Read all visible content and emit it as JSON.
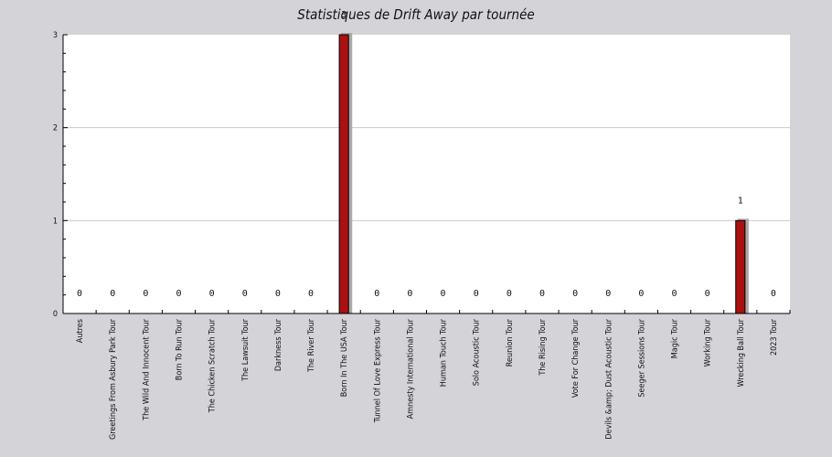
{
  "chart_data": {
    "type": "bar",
    "title": "Statistiques de Drift Away par tournée",
    "xlabel": "",
    "ylabel": "",
    "ylim": [
      0,
      3
    ],
    "yticks": [
      0,
      1,
      2,
      3
    ],
    "grid": true,
    "legend": "none",
    "categories": [
      "Autres",
      "Greetings From Asbury Park Tour",
      "The Wild And Innocent Tour",
      "Born To Run Tour",
      "The Chicken Scratch Tour",
      "The Lawsuit Tour",
      "Darkness Tour",
      "The River Tour",
      "Born In The USA Tour",
      "Tunnel Of Love Express Tour",
      "Amnesty International Tour",
      "Human Touch Tour",
      "Solo Acoustic Tour",
      "Reunion Tour",
      "The Rising Tour",
      "Vote For Change Tour",
      "Devils &amp; Dust Acoustic Tour",
      "Seeger Sessions Tour",
      "Magic Tour",
      "Working Tour",
      "Wrecking Ball Tour",
      "2023 Tour"
    ],
    "values": [
      0,
      0,
      0,
      0,
      0,
      0,
      0,
      0,
      3,
      0,
      0,
      0,
      0,
      0,
      0,
      0,
      0,
      0,
      0,
      0,
      1,
      0
    ],
    "data_labels": [
      "0",
      "0",
      "0",
      "0",
      "0",
      "0",
      "0",
      "0",
      "3",
      "0",
      "0",
      "0",
      "0",
      "0",
      "0",
      "0",
      "0",
      "0",
      "0",
      "0",
      "1",
      "0"
    ],
    "colors": {
      "bar": "#aa1111",
      "bar_shadow": "#a9a9a9",
      "plot_background": "#ffffff",
      "page_background": "#d4d3d8",
      "grid": "#cccccc",
      "axis": "#000000"
    }
  }
}
